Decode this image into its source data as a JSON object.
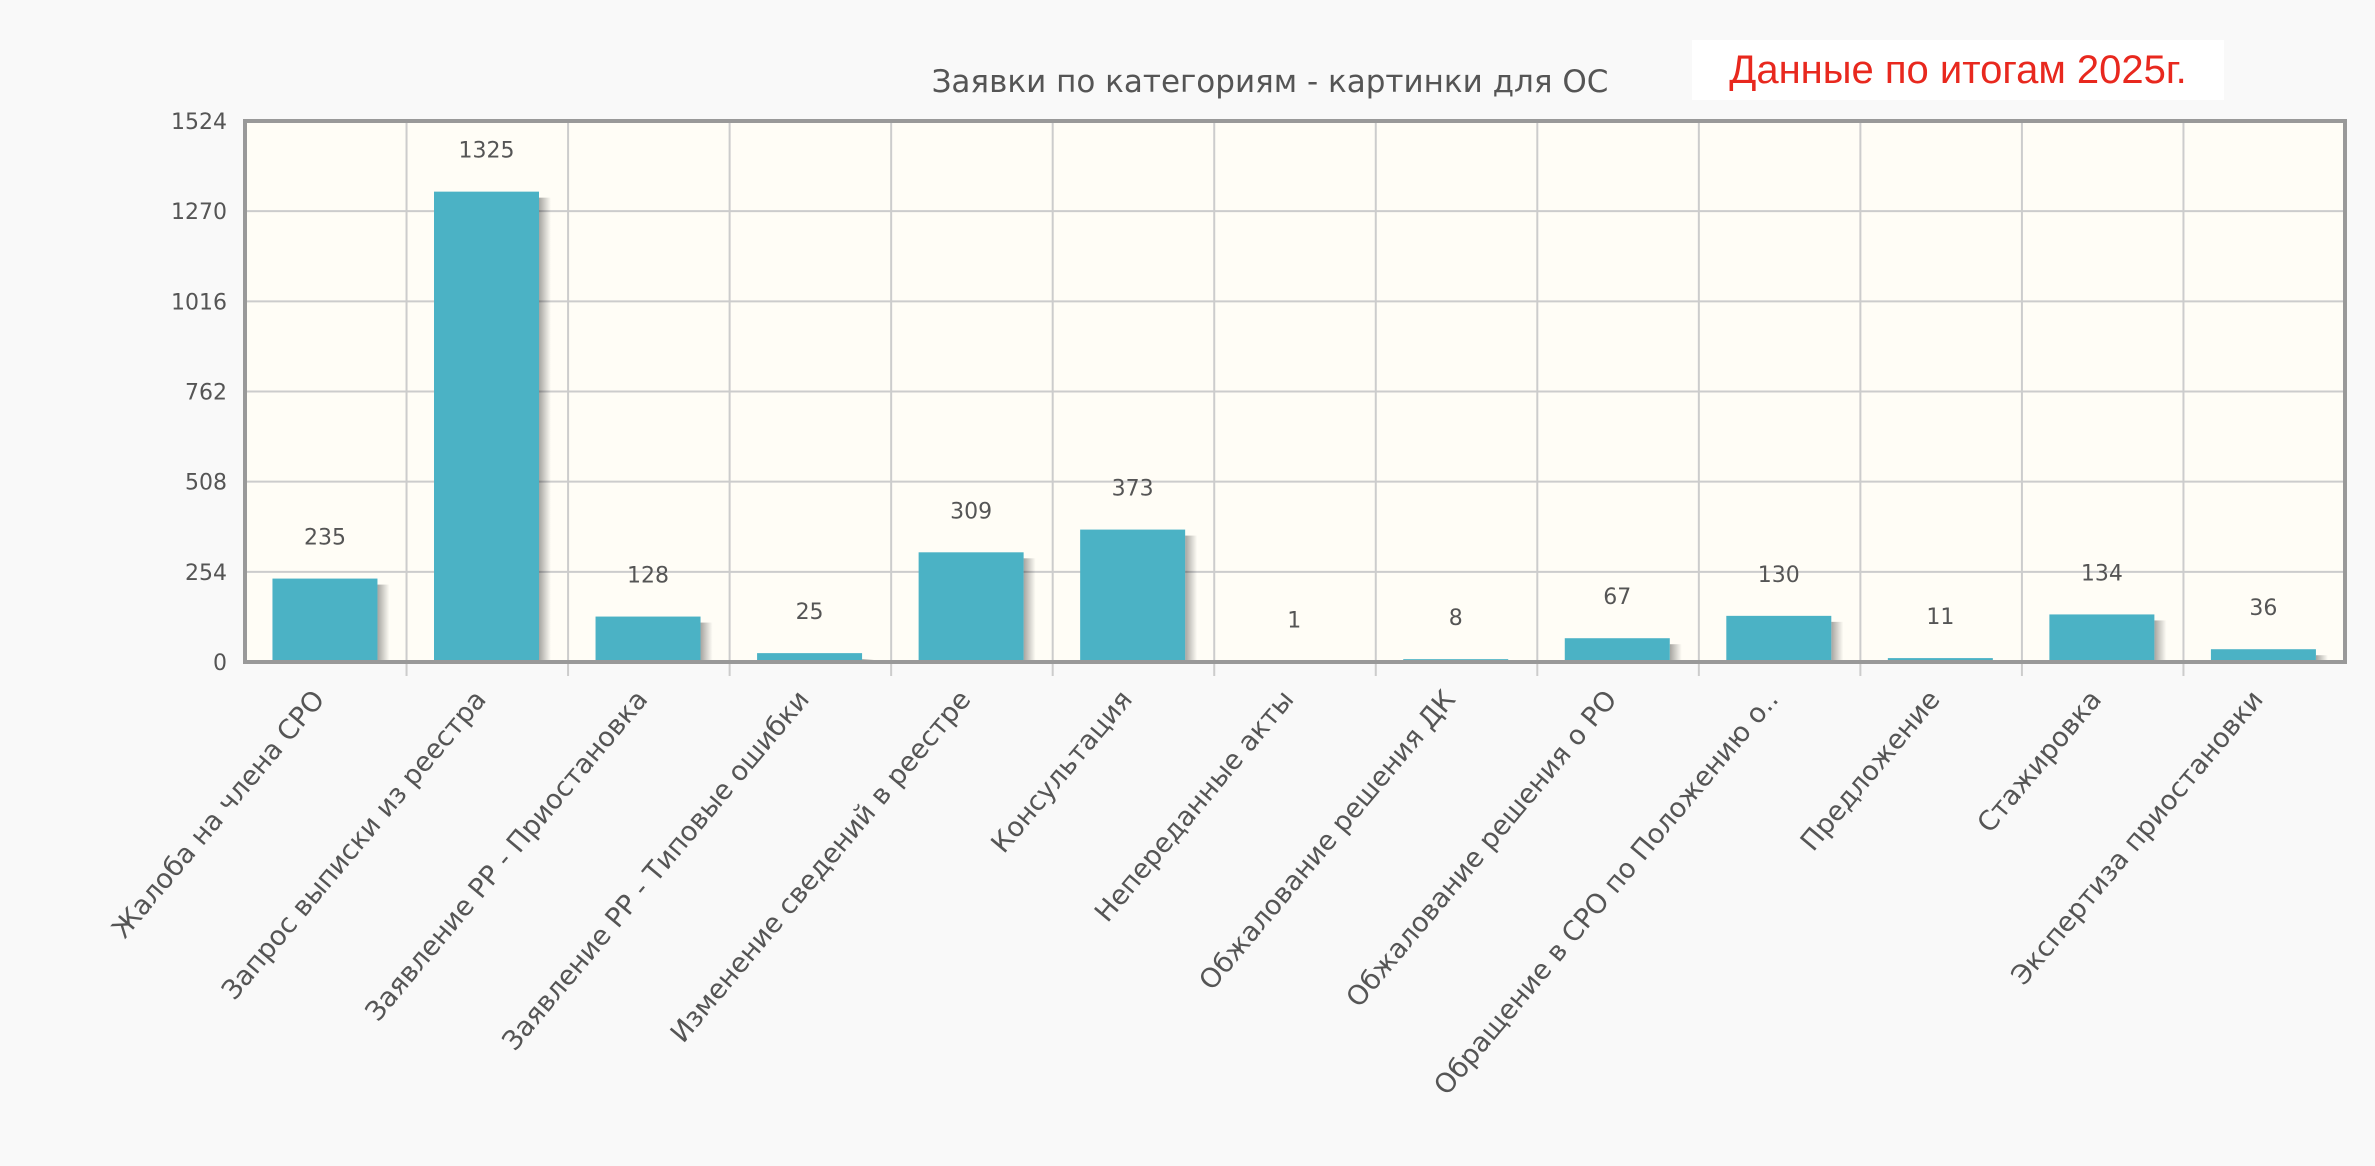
{
  "annotation": "Данные по итогам 2025г.",
  "chart_data": {
    "type": "bar",
    "title": "Заявки по категориям - картинки для ОС",
    "xlabel": "",
    "ylabel": "",
    "ylim": [
      0,
      1524
    ],
    "yticks": [
      0,
      254,
      508,
      762,
      1016,
      1270,
      1524
    ],
    "grid": true,
    "categories": [
      "Жалоба на  члена СРО",
      "Запрос выписки из реестра",
      "Заявление РР - Приостановка",
      "Заявление РР - Типовые ошибки",
      "Изменение сведений в реестре",
      "Консультация",
      "Непереданные акты",
      "Обжалование решения ДК",
      "Обжалование решения о РО",
      "Обращение в СРО по Положению о..",
      "Предложение",
      "Стажировка",
      "Экспертиза приостановки"
    ],
    "values": [
      235,
      1325,
      128,
      25,
      309,
      373,
      1,
      8,
      67,
      130,
      11,
      134,
      36
    ],
    "colors": {
      "bar": "#4bb2c5",
      "plot_bg": "#fffdf6",
      "grid": "#cccccc",
      "text": "#555555"
    }
  }
}
